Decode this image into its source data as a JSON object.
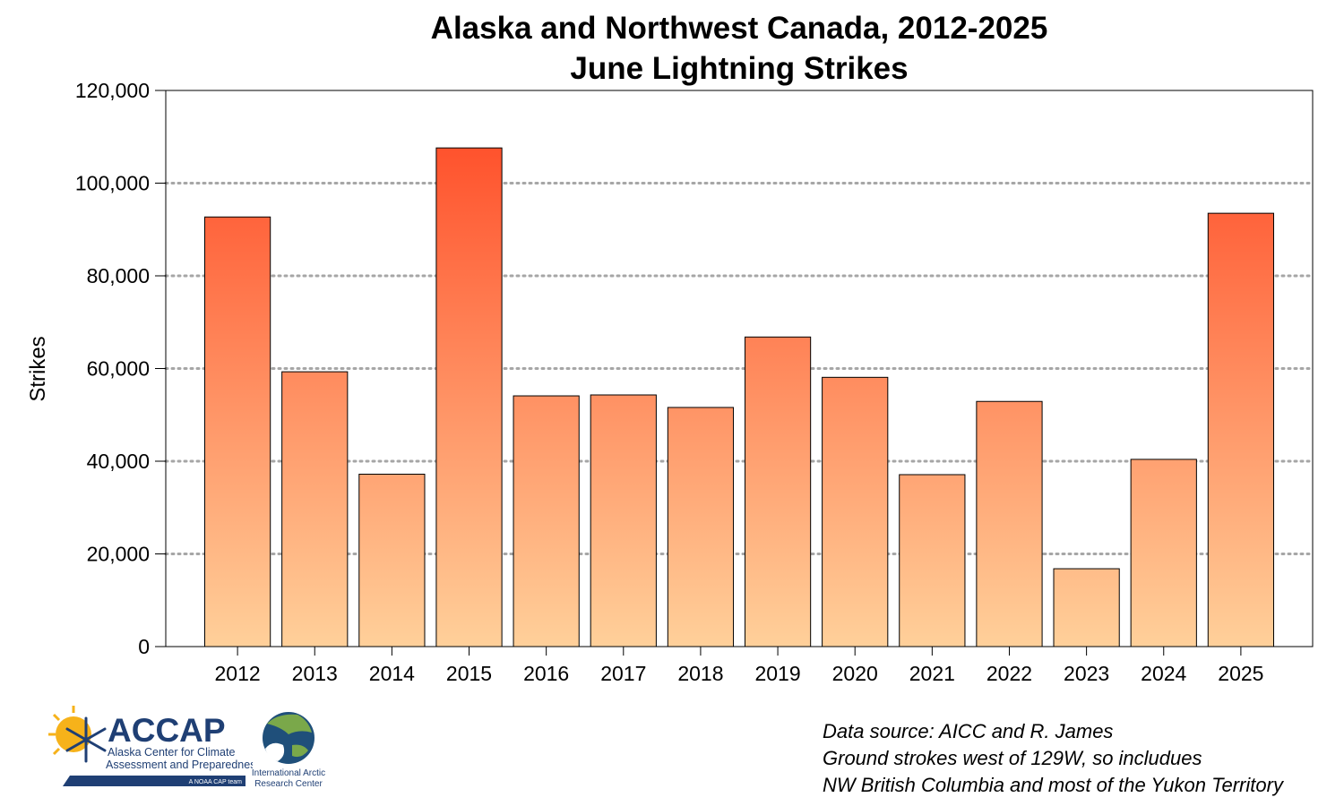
{
  "chart_data": {
    "type": "bar",
    "title": "Alaska and Northwest Canada, 2012-2025",
    "subtitle": "June Lightning Strikes",
    "xlabel": "",
    "ylabel": "Strikes",
    "categories": [
      "2012",
      "2013",
      "2014",
      "2015",
      "2016",
      "2017",
      "2018",
      "2019",
      "2020",
      "2021",
      "2022",
      "2023",
      "2024",
      "2025"
    ],
    "values": [
      92700,
      59300,
      37200,
      107600,
      54100,
      54300,
      51600,
      66800,
      58100,
      37100,
      52900,
      16800,
      40400,
      93500
    ],
    "ylim": [
      0,
      120000
    ],
    "yticks": [
      0,
      20000,
      40000,
      60000,
      80000,
      100000,
      120000
    ],
    "ytick_labels": [
      "0",
      "20,000",
      "40,000",
      "60,000",
      "80,000",
      "100,000",
      "120,000"
    ],
    "grid": "horizontal dotted",
    "colors": {
      "bar_top": "#ff4420",
      "bar_bottom": "#ffd09a",
      "bar_edge": "#000000",
      "grid": "#a6a6a6"
    }
  },
  "source_notes": [
    "Data source: AICC and R. James",
    "Ground strokes west of 129W, so includues",
    "NW British Columbia and most of the Yukon Territory"
  ],
  "logos": {
    "accap": {
      "name": "ACCAP",
      "line1": "Alaska Center for Climate",
      "line2": "Assessment and Preparedness",
      "tag": "A NOAA CAP team"
    },
    "iarc": {
      "line1": "International Arctic",
      "line2": "Research Center"
    }
  }
}
